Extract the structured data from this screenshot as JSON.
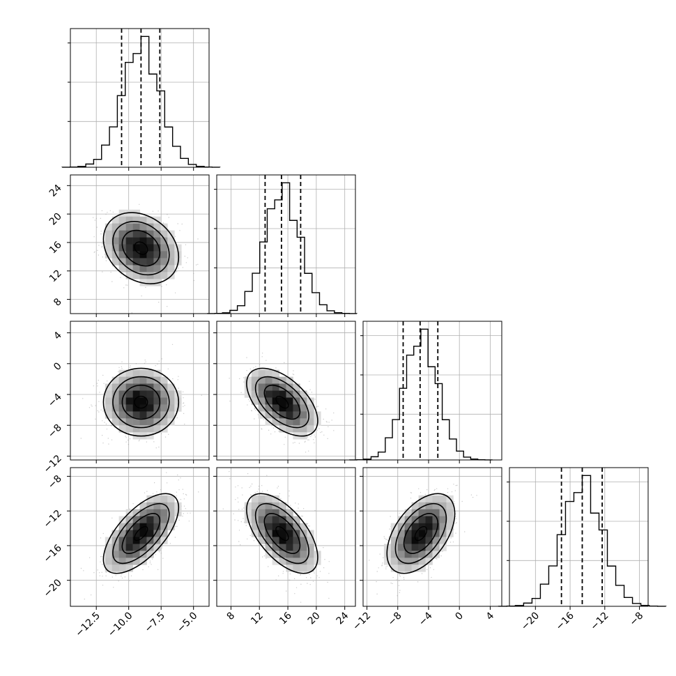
{
  "chart_data": {
    "type": "corner",
    "parameters": [
      {
        "key": "p0",
        "range": [
          -14.5,
          -3.8
        ],
        "ticks": [
          -12.5,
          -10.0,
          -7.5,
          -5.0
        ],
        "tick_labels": [
          "−12.5",
          "−10.0",
          "−7.5",
          "−5.0"
        ],
        "quantiles": [
          -10.55,
          -9.05,
          -7.6
        ],
        "mean": -9.05,
        "sd": 1.45
      },
      {
        "key": "p1",
        "range": [
          6.0,
          25.5
        ],
        "ticks": [
          8,
          12,
          16,
          20,
          24
        ],
        "tick_labels": [
          "8",
          "12",
          "16",
          "20",
          "24"
        ],
        "quantiles": [
          12.8,
          15.1,
          17.8
        ],
        "mean": 15.2,
        "sd": 2.5
      },
      {
        "key": "p2",
        "range": [
          -12.5,
          5.5
        ],
        "ticks": [
          -12,
          -8,
          -4,
          0,
          4
        ],
        "tick_labels": [
          "−12",
          "−8",
          "−4",
          "0",
          "4"
        ],
        "quantiles": [
          -7.3,
          -5.1,
          -2.8
        ],
        "mean": -5.0,
        "sd": 2.2
      },
      {
        "key": "p3",
        "range": [
          -23.0,
          -7.0
        ],
        "ticks": [
          -20,
          -16,
          -12,
          -8
        ],
        "tick_labels": [
          "−20",
          "−16",
          "−12",
          "−8"
        ],
        "quantiles": [
          -17.0,
          -14.6,
          -12.3
        ],
        "mean": -14.6,
        "sd": 2.3
      }
    ],
    "correlations": {
      "1,0": -0.25,
      "2,0": 0.0,
      "2,1": -0.55,
      "3,0": 0.65,
      "3,1": -0.6,
      "3,2": 0.5
    },
    "histogram_bins": 20,
    "contour_levels": [
      "1sigma",
      "1.5sigma",
      "2sigma"
    ],
    "quantile_lines": "dashed",
    "grid": true,
    "colors": {
      "line": "#000000",
      "scatter": "#9a9a9a",
      "grid": "#b0b0b0",
      "density": "#000000"
    }
  }
}
